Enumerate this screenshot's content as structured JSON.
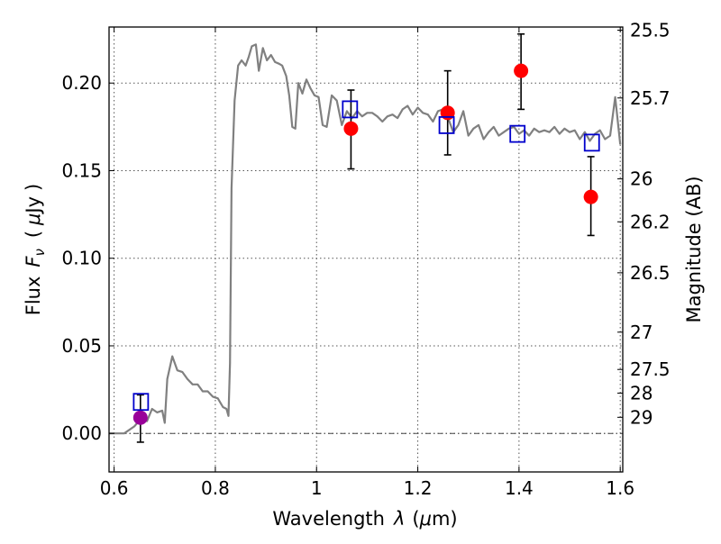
{
  "chart_data": {
    "type": "scatter",
    "xlabel_parts": [
      "Wavelength",
      "λ",
      "(",
      "μ",
      "m)"
    ],
    "ylabel_parts": [
      "Flux",
      "F",
      "ν",
      "(",
      "μ",
      "Jy",
      ")"
    ],
    "y2label": "Magnitude (AB)",
    "xlim": [
      0.59,
      1.605
    ],
    "ylim": [
      -0.022,
      0.232
    ],
    "x_ticks": [
      0.6,
      0.8,
      1.0,
      1.2,
      1.4,
      1.6
    ],
    "x_tick_labels": [
      "0.6",
      "0.8",
      "1",
      "1.2",
      "1.4",
      "1.6"
    ],
    "y_ticks": [
      0.0,
      0.05,
      0.1,
      0.15,
      0.2
    ],
    "y_tick_labels": [
      "0.00",
      "0.05",
      "0.10",
      "0.15",
      "0.20"
    ],
    "mag_ticks": [
      {
        "label": "25.5",
        "flux": 0.2302
      },
      {
        "label": "25.7",
        "flux": 0.1915
      },
      {
        "label": "26",
        "flux": 0.1453
      },
      {
        "label": "26.2",
        "flux": 0.1208
      },
      {
        "label": "26.5",
        "flux": 0.0917
      },
      {
        "label": "27",
        "flux": 0.0578
      },
      {
        "label": "27.5",
        "flux": 0.0365
      },
      {
        "label": "28",
        "flux": 0.023
      },
      {
        "label": "29",
        "flux": 0.0092
      }
    ],
    "grid": true,
    "reference_line_y": 0.0,
    "colors": {
      "model": "#808080",
      "observed": "#ff0000",
      "optical": "#990099",
      "synthetic": "#0000cc",
      "errorbar": "#000000",
      "grid": "#555555"
    },
    "model_spectrum": {
      "x": [
        0.59,
        0.62,
        0.64,
        0.655,
        0.665,
        0.675,
        0.685,
        0.695,
        0.7,
        0.705,
        0.715,
        0.725,
        0.735,
        0.745,
        0.755,
        0.765,
        0.775,
        0.785,
        0.795,
        0.805,
        0.815,
        0.822,
        0.826,
        0.829,
        0.832,
        0.838,
        0.845,
        0.852,
        0.86,
        0.866,
        0.872,
        0.88,
        0.886,
        0.894,
        0.902,
        0.91,
        0.918,
        0.926,
        0.932,
        0.94,
        0.946,
        0.952,
        0.958,
        0.964,
        0.972,
        0.98,
        0.988,
        0.996,
        1.004,
        1.012,
        1.02,
        1.03,
        1.04,
        1.05,
        1.06,
        1.07,
        1.08,
        1.09,
        1.1,
        1.11,
        1.12,
        1.13,
        1.14,
        1.15,
        1.16,
        1.17,
        1.18,
        1.19,
        1.2,
        1.21,
        1.22,
        1.23,
        1.24,
        1.25,
        1.26,
        1.27,
        1.28,
        1.29,
        1.3,
        1.31,
        1.32,
        1.33,
        1.34,
        1.35,
        1.36,
        1.37,
        1.38,
        1.39,
        1.4,
        1.41,
        1.42,
        1.43,
        1.44,
        1.45,
        1.46,
        1.47,
        1.48,
        1.49,
        1.5,
        1.51,
        1.52,
        1.53,
        1.54,
        1.55,
        1.56,
        1.57,
        1.58,
        1.59,
        1.6
      ],
      "y": [
        0.0,
        0.0,
        0.004,
        0.009,
        0.007,
        0.014,
        0.012,
        0.013,
        0.006,
        0.031,
        0.044,
        0.036,
        0.035,
        0.031,
        0.028,
        0.028,
        0.024,
        0.024,
        0.021,
        0.02,
        0.015,
        0.014,
        0.01,
        0.04,
        0.14,
        0.19,
        0.21,
        0.213,
        0.21,
        0.215,
        0.221,
        0.222,
        0.207,
        0.22,
        0.213,
        0.216,
        0.212,
        0.211,
        0.21,
        0.204,
        0.193,
        0.175,
        0.174,
        0.2,
        0.194,
        0.202,
        0.197,
        0.193,
        0.192,
        0.176,
        0.175,
        0.193,
        0.19,
        0.176,
        0.184,
        0.18,
        0.184,
        0.181,
        0.183,
        0.183,
        0.181,
        0.178,
        0.181,
        0.182,
        0.18,
        0.185,
        0.187,
        0.182,
        0.186,
        0.183,
        0.182,
        0.178,
        0.184,
        0.185,
        0.18,
        0.172,
        0.176,
        0.184,
        0.17,
        0.174,
        0.176,
        0.168,
        0.172,
        0.175,
        0.17,
        0.172,
        0.174,
        0.175,
        0.171,
        0.173,
        0.17,
        0.174,
        0.172,
        0.173,
        0.172,
        0.175,
        0.171,
        0.174,
        0.172,
        0.173,
        0.168,
        0.172,
        0.167,
        0.171,
        0.173,
        0.168,
        0.17,
        0.192,
        0.165
      ]
    },
    "observed_points": [
      {
        "x": 1.068,
        "y": 0.174,
        "err_low": 0.151,
        "err_high": 0.196
      },
      {
        "x": 1.259,
        "y": 0.183,
        "err_low": 0.159,
        "err_high": 0.207
      },
      {
        "x": 1.404,
        "y": 0.207,
        "err_low": 0.185,
        "err_high": 0.228
      },
      {
        "x": 1.542,
        "y": 0.135,
        "err_low": 0.113,
        "err_high": 0.158
      }
    ],
    "optical_point": {
      "x": 0.652,
      "y": 0.009,
      "err_low": -0.005,
      "err_high": 0.022
    },
    "synthetic_points": [
      {
        "x": 0.653,
        "y": 0.018
      },
      {
        "x": 1.066,
        "y": 0.185
      },
      {
        "x": 1.257,
        "y": 0.176
      },
      {
        "x": 1.397,
        "y": 0.171
      },
      {
        "x": 1.544,
        "y": 0.166
      }
    ]
  }
}
